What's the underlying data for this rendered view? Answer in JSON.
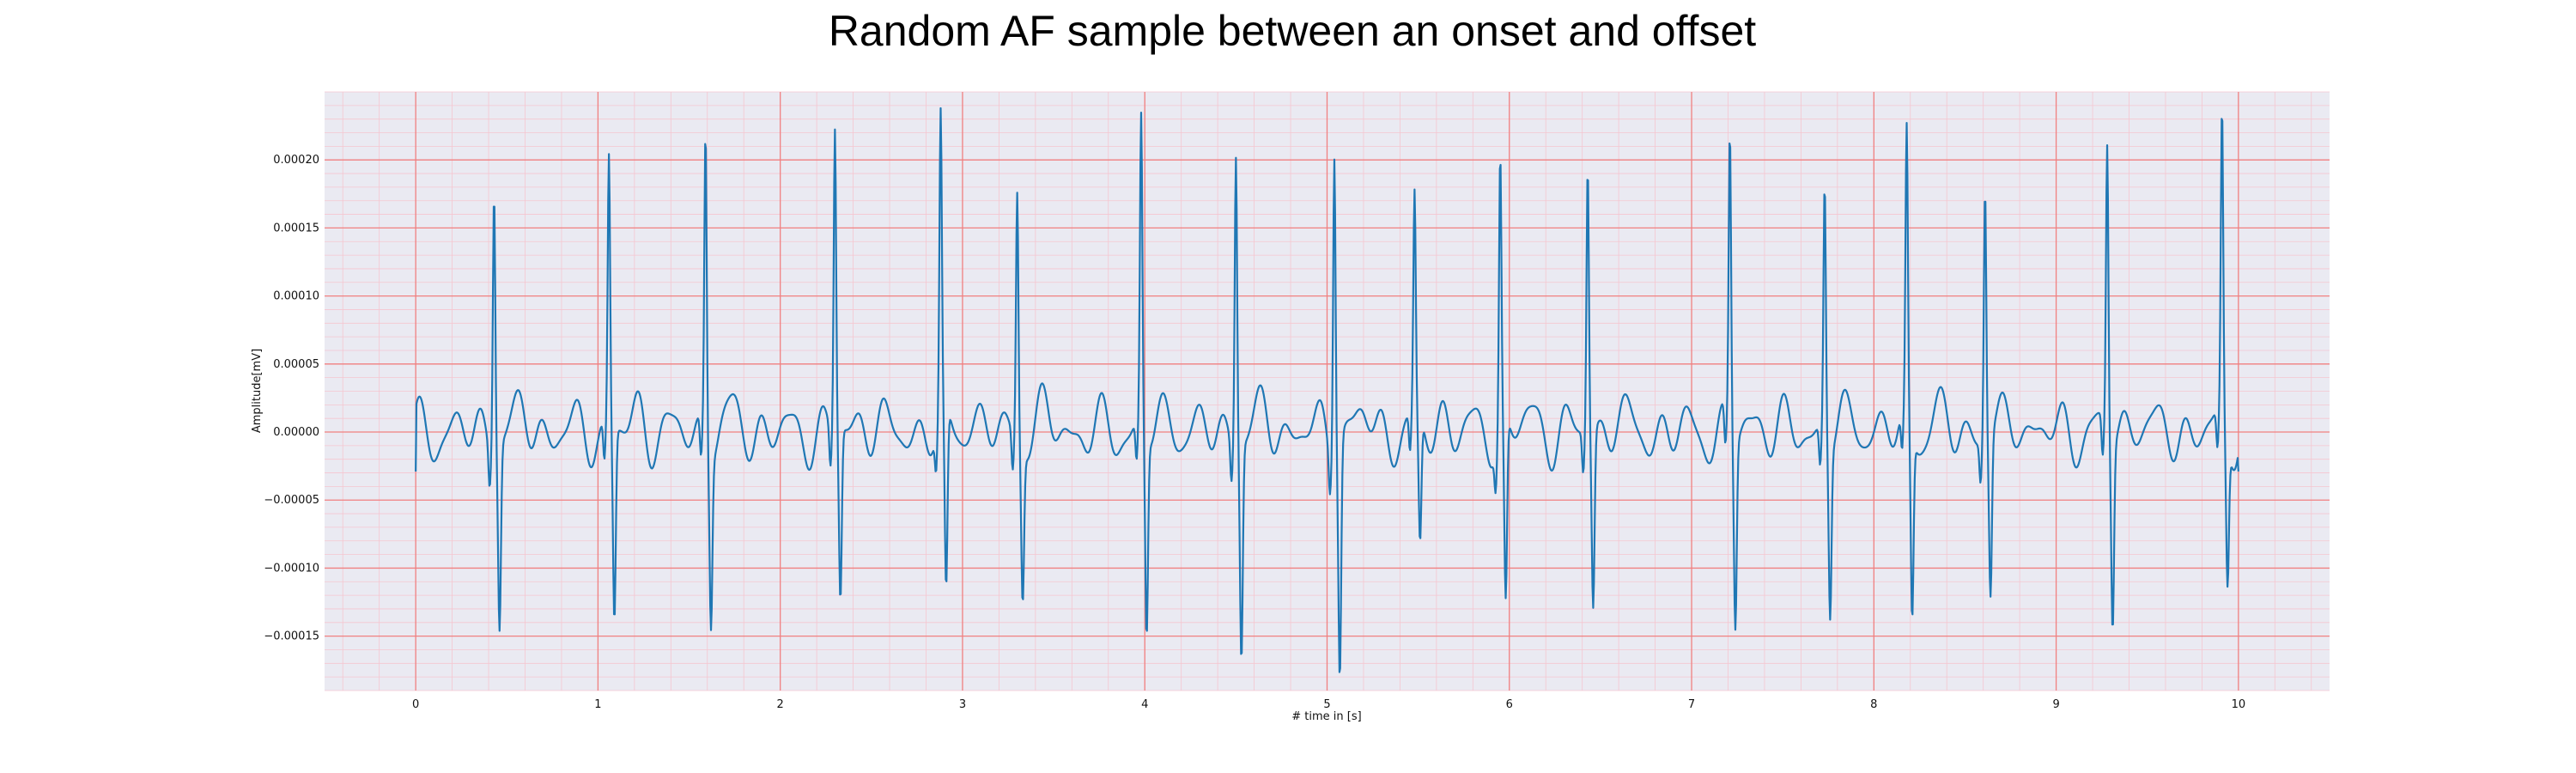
{
  "chart_data": {
    "type": "line",
    "title": "Random AF sample between an onset and offset",
    "xlabel": "# time in [s]",
    "ylabel": "Amplitude[mV]",
    "xlim": [
      -0.5,
      10.5
    ],
    "ylim": [
      -0.00019,
      0.00025
    ],
    "xticks": [
      0,
      1,
      2,
      3,
      4,
      5,
      6,
      7,
      8,
      9,
      10
    ],
    "xtick_labels": [
      "0",
      "1",
      "2",
      "3",
      "4",
      "5",
      "6",
      "7",
      "8",
      "9",
      "10"
    ],
    "yticks": [
      -0.00015,
      -0.0001,
      -5e-05,
      0,
      5e-05,
      0.0001,
      0.00015,
      0.0002
    ],
    "ytick_labels": [
      "−0.00015",
      "−0.00010",
      "−0.00005",
      "0.00000",
      "0.00005",
      "0.00010",
      "0.00015",
      "0.00020"
    ],
    "grid": "on",
    "grid_style": "ECG paper: major red lines, minor pink lines",
    "colors": {
      "background": "#EAEAF2",
      "line": "#1F77B4",
      "major_grid": "#F08080",
      "minor_grid": "#F5C6D0"
    },
    "series": [
      {
        "beats": [
          {
            "t": 0.43,
            "r": 0.000195,
            "s": -0.000133
          },
          {
            "t": 1.06,
            "r": 0.0002,
            "s": -0.00014
          },
          {
            "t": 1.59,
            "r": 0.000225,
            "s": -0.000124
          },
          {
            "t": 2.3,
            "r": 0.000225,
            "s": -0.000124
          },
          {
            "t": 2.88,
            "r": 0.00022,
            "s": -0.000135
          },
          {
            "t": 3.3,
            "r": 0.000183,
            "s": -0.00011
          },
          {
            "t": 3.98,
            "r": 0.000228,
            "s": -0.000144
          },
          {
            "t": 4.5,
            "r": 0.000217,
            "s": -0.000156
          },
          {
            "t": 5.04,
            "r": 0.000227,
            "s": -0.00017
          },
          {
            "t": 5.48,
            "r": 0.000162,
            "s": -9.3e-05
          },
          {
            "t": 5.95,
            "r": 0.0002,
            "s": -0.000135
          },
          {
            "t": 6.43,
            "r": 0.0002,
            "s": -0.000127
          },
          {
            "t": 7.21,
            "r": 0.000217,
            "s": -0.000137
          },
          {
            "t": 7.73,
            "r": 0.000185,
            "s": -0.000124
          },
          {
            "t": 8.18,
            "r": 0.000211,
            "s": -0.000135
          },
          {
            "t": 8.61,
            "r": 0.000187,
            "s": -0.000116
          },
          {
            "t": 9.28,
            "r": 0.000212,
            "s": -0.000135
          },
          {
            "t": 9.91,
            "r": 0.000225,
            "s": -0.000107
          }
        ],
        "start": {
          "t": 0.0,
          "v": -2.9e-05
        },
        "end": {
          "t": 10.0,
          "v": -2.9e-05
        },
        "baseline_fibrillation": {
          "amplitude_range": [
            -3.5e-05,
            3.8e-05
          ],
          "dominant_period_s": 0.17
        }
      }
    ]
  }
}
